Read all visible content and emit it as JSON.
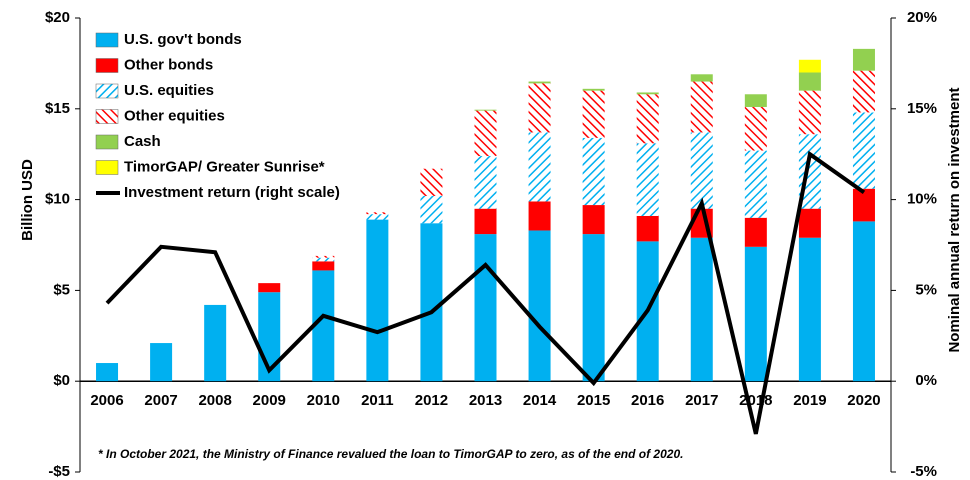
{
  "chart_data": {
    "type": "bar",
    "y_label": "Billion USD",
    "y2_label": "Nominal annual return on investment",
    "note": "* In October 2021, the Ministry of Finance revalued the loan to TimorGAP to zero, as of the end of 2020.",
    "categories": [
      "2006",
      "2007",
      "2008",
      "2009",
      "2010",
      "2011",
      "2012",
      "2013",
      "2014",
      "2015",
      "2016",
      "2017",
      "2018",
      "2019",
      "2020"
    ],
    "series": [
      {
        "name": "U.S. gov't bonds",
        "color": "#00b0f0",
        "values": [
          1.0,
          2.1,
          4.2,
          4.9,
          6.1,
          8.9,
          8.7,
          8.1,
          8.3,
          8.1,
          7.7,
          7.9,
          7.4,
          7.9,
          8.8
        ]
      },
      {
        "name": "Other bonds",
        "color": "#ff0000",
        "values": [
          0,
          0,
          0,
          0.5,
          0.5,
          0,
          0,
          1.4,
          1.6,
          1.6,
          1.4,
          1.6,
          1.6,
          1.6,
          1.8
        ]
      },
      {
        "name": "U.S. equities",
        "color": "#00b0f0",
        "pattern": "hatch",
        "values": [
          0,
          0,
          0,
          0,
          0.2,
          0.3,
          1.5,
          2.9,
          3.8,
          3.7,
          4.0,
          4.2,
          3.7,
          4.1,
          4.2
        ]
      },
      {
        "name": "Other equities",
        "color": "#ff0000",
        "pattern": "hatch",
        "values": [
          0,
          0,
          0,
          0,
          0.1,
          0.1,
          1.5,
          2.5,
          2.7,
          2.6,
          2.7,
          2.8,
          2.4,
          2.4,
          2.3
        ]
      },
      {
        "name": "Cash",
        "color": "#92d050",
        "values": [
          0,
          0,
          0,
          0,
          0,
          0,
          0,
          0.05,
          0.1,
          0.1,
          0.1,
          0.4,
          0.7,
          1.0,
          1.2
        ]
      },
      {
        "name": "TimorGAP/ Greater Sunrise*",
        "color": "#ffff00",
        "values": [
          0,
          0,
          0,
          0,
          0,
          0,
          0,
          0,
          0,
          0,
          0,
          0,
          0,
          0.7,
          0
        ]
      },
      {
        "name": "Investment return (right scale)",
        "color": "#000000",
        "type": "line",
        "axis": "y2",
        "values": [
          4.3,
          7.4,
          7.1,
          0.6,
          3.6,
          2.7,
          3.8,
          6.4,
          3.0,
          -0.1,
          3.9,
          9.8,
          -2.9,
          12.5,
          10.4
        ]
      }
    ],
    "ylim": [
      -5,
      20
    ],
    "yticks": [
      {
        "value": -5,
        "label": "-$5"
      },
      {
        "value": 0,
        "label": "$0"
      },
      {
        "value": 5,
        "label": "$5"
      },
      {
        "value": 10,
        "label": "$10"
      },
      {
        "value": 15,
        "label": "$15"
      },
      {
        "value": 20,
        "label": "$20"
      }
    ],
    "y2lim": [
      -5,
      20
    ],
    "y2ticks": [
      {
        "value": -5,
        "label": "-5%"
      },
      {
        "value": 0,
        "label": "0%"
      },
      {
        "value": 5,
        "label": "5%"
      },
      {
        "value": 10,
        "label": "10%"
      },
      {
        "value": 15,
        "label": "15%"
      },
      {
        "value": 20,
        "label": "20%"
      }
    ],
    "stacked": true,
    "grid": false,
    "legend": "upper left"
  }
}
